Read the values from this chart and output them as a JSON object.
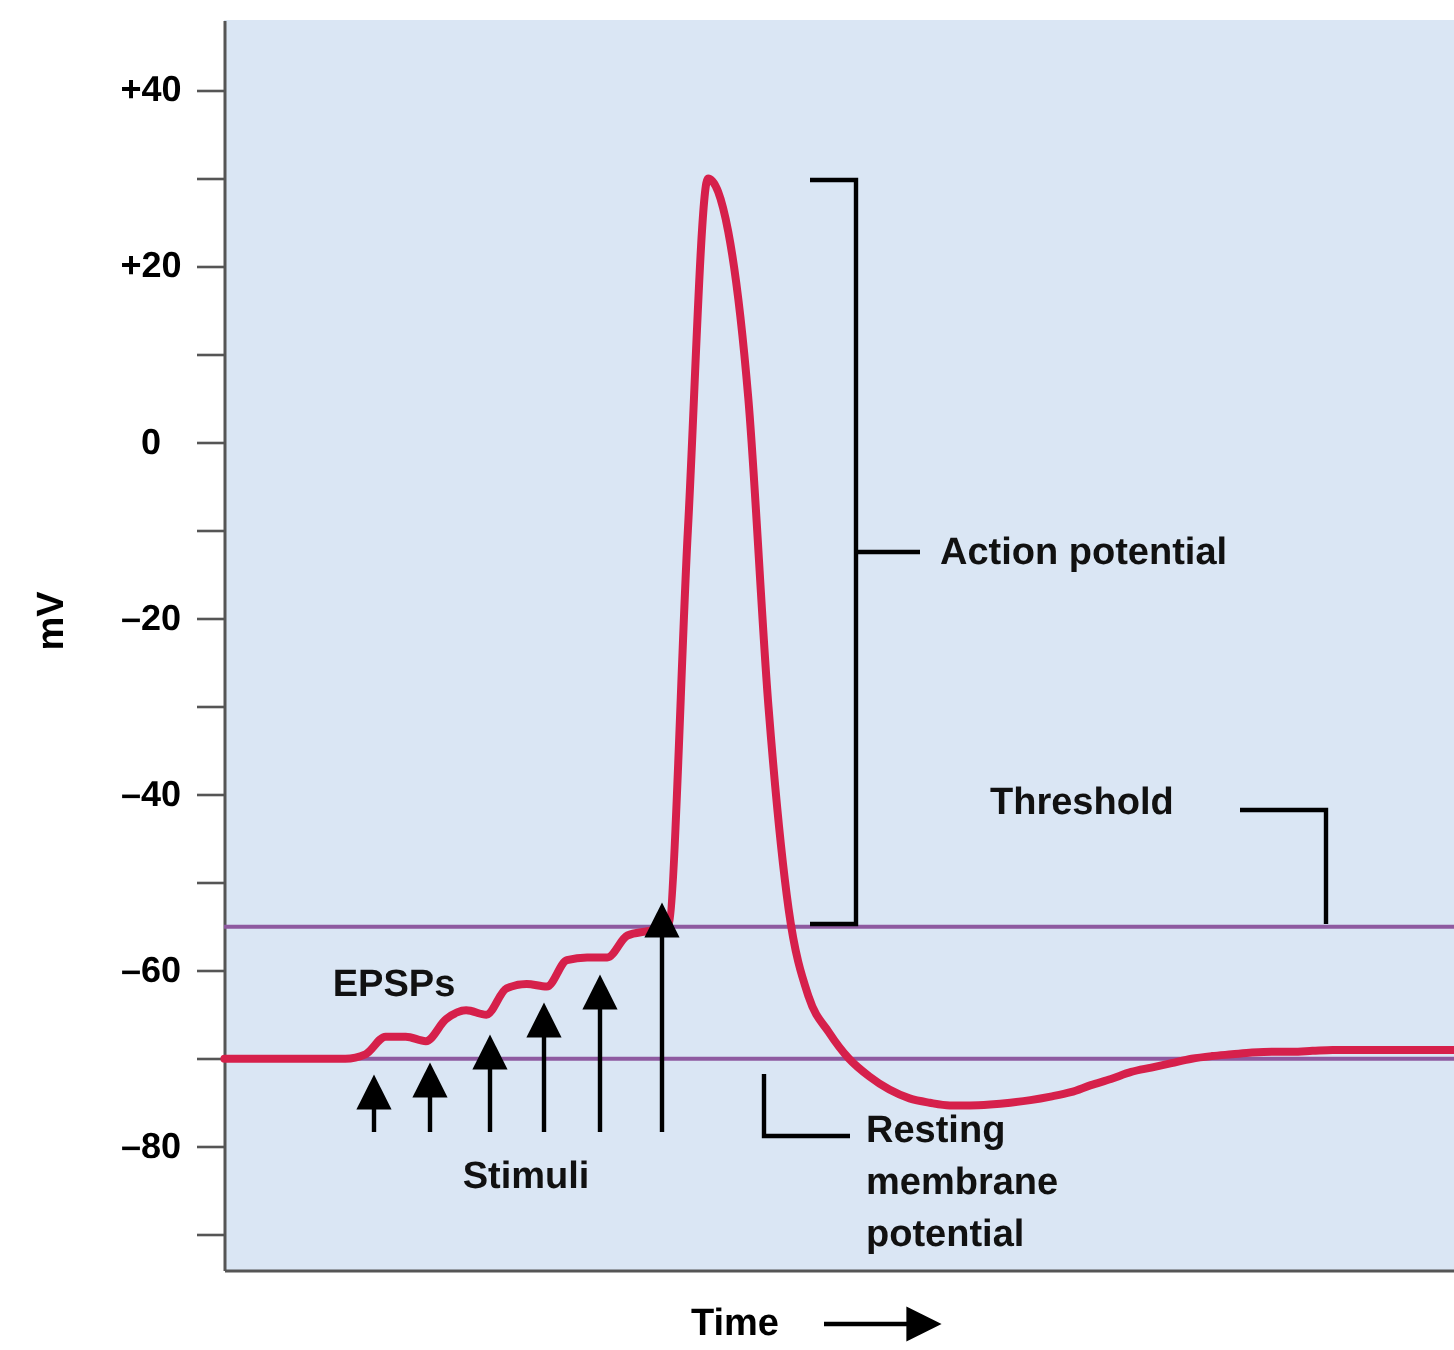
{
  "chart_data": {
    "type": "line",
    "xlabel": "Time",
    "ylabel": "mV",
    "categories": [
      null,
      null,
      null,
      null,
      null,
      null,
      null,
      null,
      null,
      null,
      null,
      null,
      null,
      null,
      null,
      null,
      null,
      null,
      null,
      null,
      null,
      null,
      null,
      null,
      null,
      null,
      null,
      null,
      null,
      null,
      null,
      null,
      null,
      null,
      null,
      null,
      null,
      null,
      null,
      null,
      null,
      null,
      null,
      null,
      null,
      null,
      null,
      null,
      null,
      null,
      null,
      null,
      null,
      null,
      null,
      null,
      null,
      null,
      null,
      null,
      null,
      null
    ],
    "series": [
      {
        "color": "#d6204b",
        "values": [
          -70,
          -70,
          -70,
          -70,
          -70,
          -70,
          -70,
          -69.5,
          -67.5,
          -67.5,
          -68,
          -65.5,
          -64.5,
          -65,
          -62,
          -61.5,
          -61.8,
          -58.8,
          -58.5,
          -58.5,
          -56,
          -55.5,
          -55,
          -10,
          30,
          24,
          5,
          -30,
          -53,
          -63,
          -67,
          -70,
          -72,
          -73.5,
          -74.5,
          -75,
          -75.3,
          -75.3,
          -75.2,
          -75,
          -74.7,
          -74.3,
          -73.8,
          -73,
          -72.3,
          -71.5,
          -71,
          -70.5,
          -70,
          -69.7,
          -69.5,
          -69.3,
          -69.2,
          -69.2,
          -69.1,
          -69,
          -69,
          -69,
          -69,
          -69,
          -69,
          -69
        ]
      }
    ],
    "ylim": [
      -94,
      48
    ],
    "yticks": [
      {
        "value": 40,
        "label": "+40"
      },
      {
        "value": 30,
        "label": null
      },
      {
        "value": 20,
        "label": "+20"
      },
      {
        "value": 10,
        "label": null
      },
      0,
      {
        "value": -10,
        "label": null
      },
      {
        "value": -20,
        "label": "–20"
      },
      {
        "value": -30,
        "label": null
      },
      {
        "value": -40,
        "label": "–40"
      },
      {
        "value": -50,
        "label": null
      },
      {
        "value": -60,
        "label": "–60"
      },
      {
        "value": -70,
        "label": null
      },
      {
        "value": -80,
        "label": "–80"
      },
      {
        "value": -90,
        "label": null
      }
    ],
    "ref_lines": [
      {
        "axis": "y",
        "value": -55,
        "label": "Threshold",
        "color": "#8e5aa0"
      },
      {
        "axis": "y",
        "value": -70,
        "label": "Resting membrane potential",
        "color": "#8e5aa0"
      }
    ],
    "annotations": [
      "EPSPs",
      "Stimuli",
      "Action potential"
    ],
    "grid": false,
    "marker": "none",
    "line_style": "solid"
  }
}
